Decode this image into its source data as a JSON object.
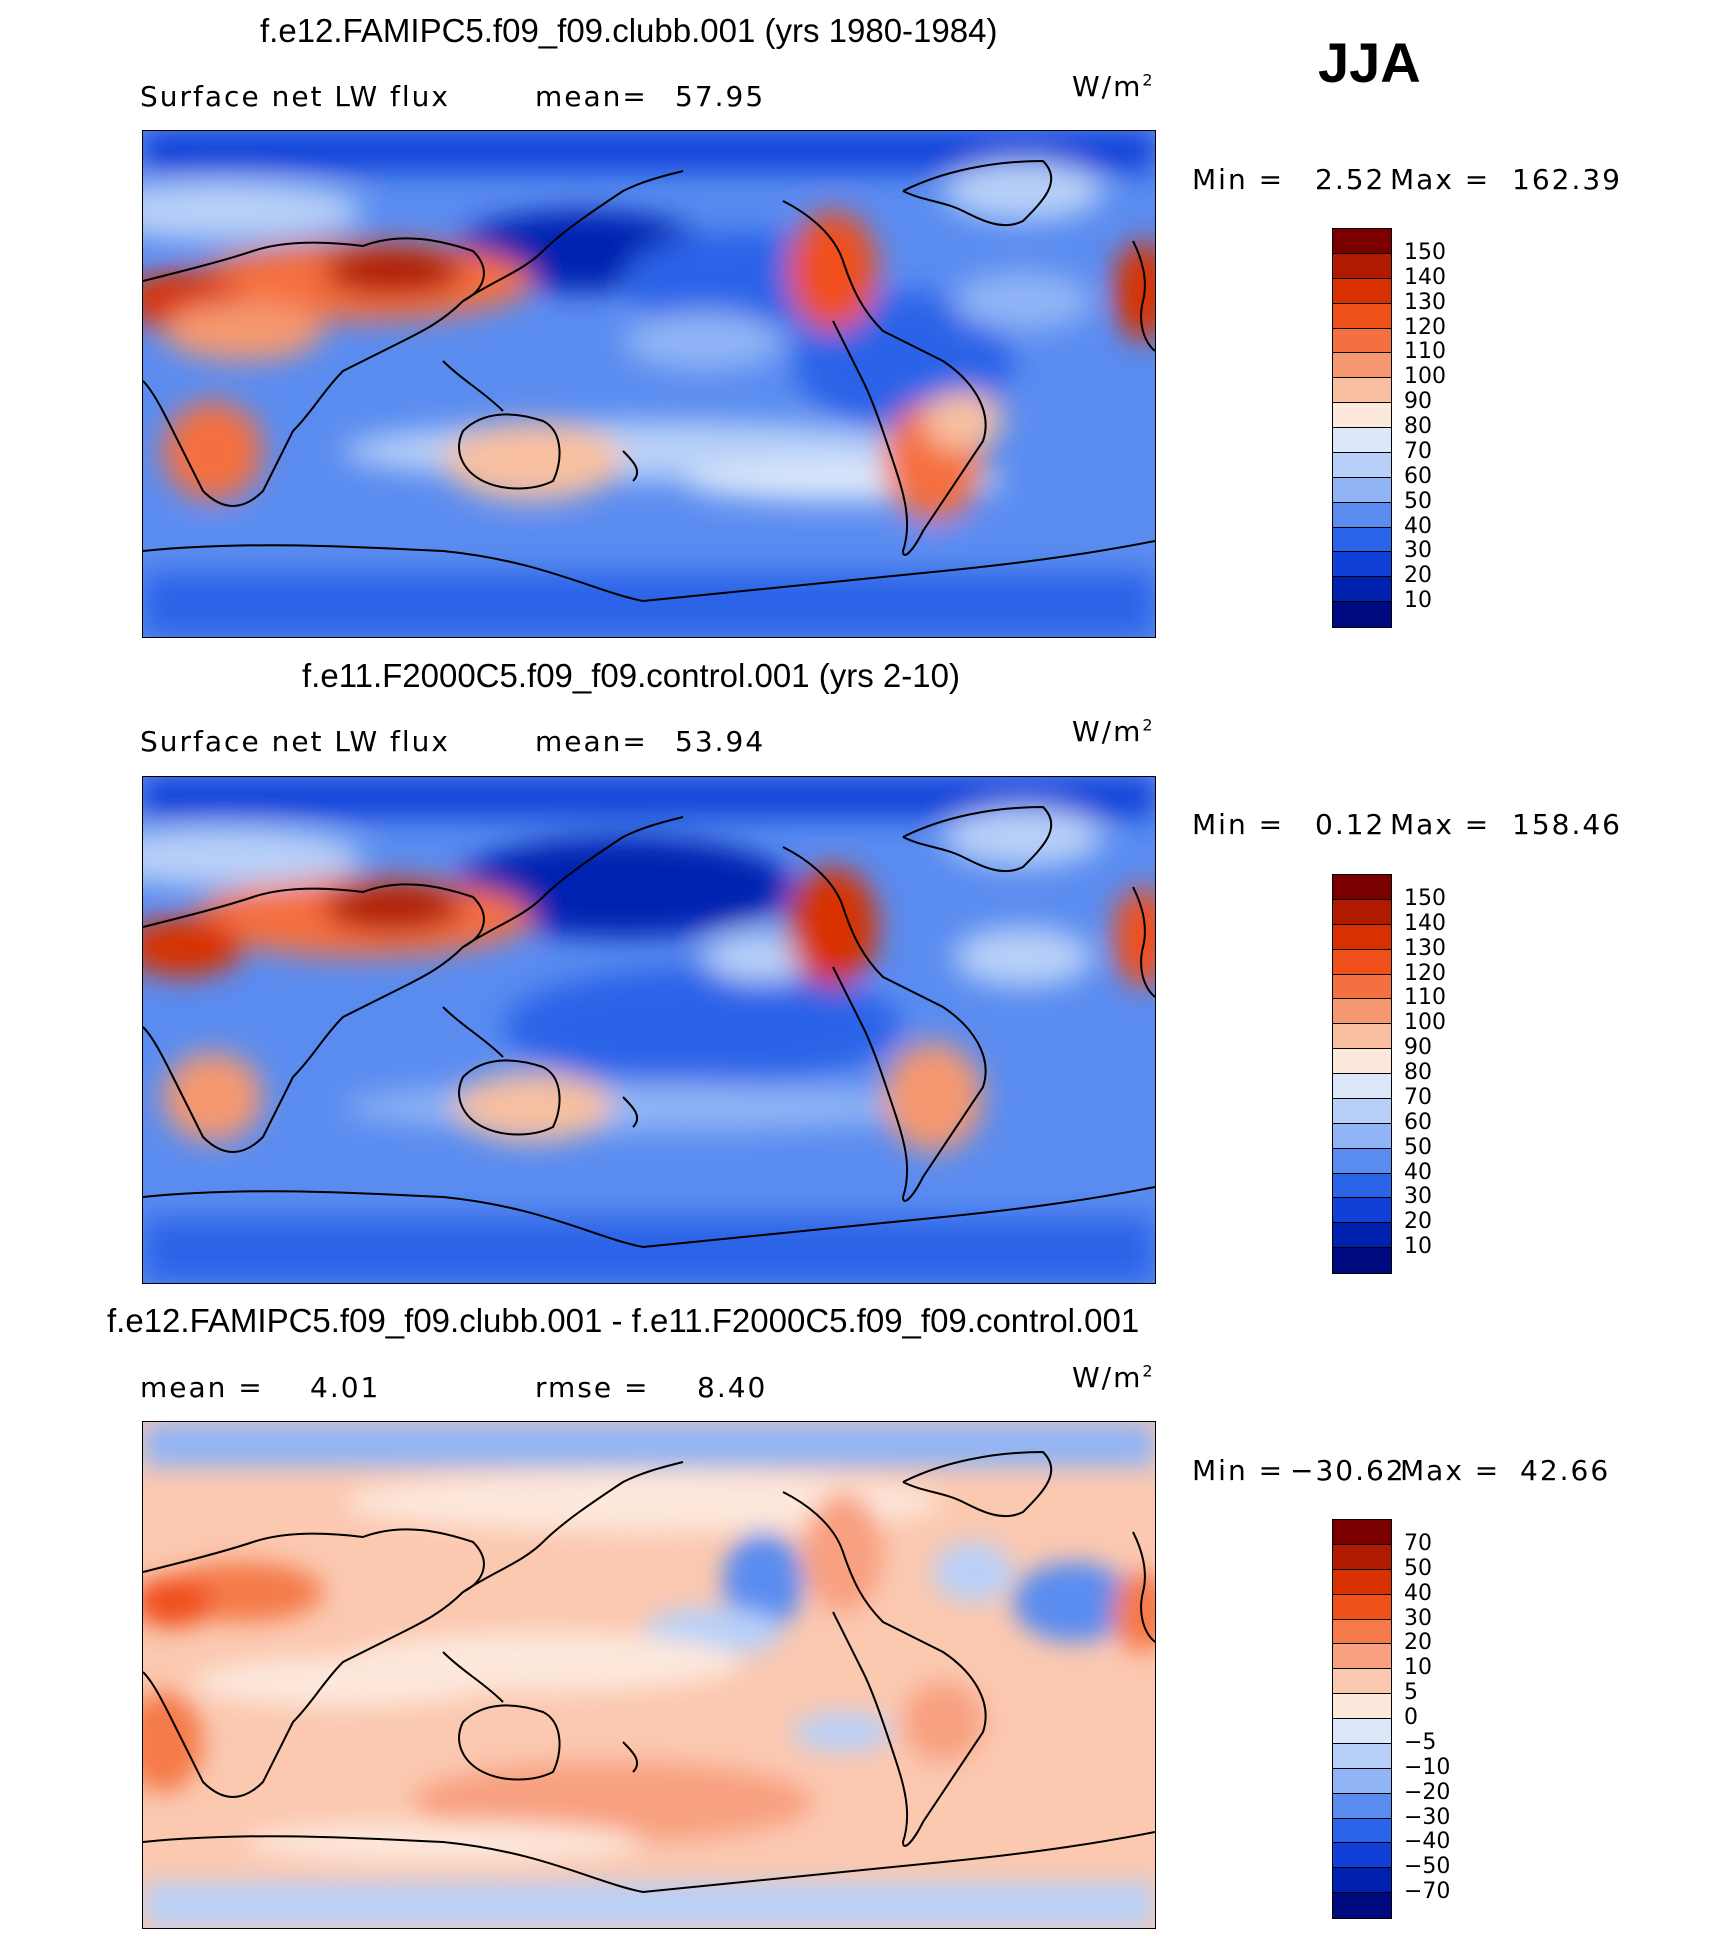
{
  "season": "JJA",
  "units_main": "W/m",
  "units_exp": "2",
  "panels": [
    {
      "title": "f.e12.FAMIPC5.f09_f09.clubb.001 (yrs 1980-1984)",
      "variable": "Surface net LW flux",
      "stat1_label": "mean=",
      "stat1_value": "57.95",
      "min_label": "Min =",
      "min_value": "2.52",
      "max_label": "Max =",
      "max_value": "162.39"
    },
    {
      "title": "f.e11.F2000C5.f09_f09.control.001 (yrs 2-10)",
      "variable": "Surface net LW flux",
      "stat1_label": "mean=",
      "stat1_value": "53.94",
      "min_label": "Min =",
      "min_value": "0.12",
      "max_label": "Max =",
      "max_value": "158.46"
    },
    {
      "title": "f.e12.FAMIPC5.f09_f09.clubb.001 - f.e11.F2000C5.f09_f09.control.001",
      "stat1_label": "mean =",
      "stat1_value": "4.01",
      "stat2_label": "rmse =",
      "stat2_value": "8.40",
      "min_label": "Min =",
      "min_value": "−30.62",
      "max_label": "Max =",
      "max_value": "42.66"
    }
  ],
  "colorbars": {
    "field": {
      "labels": [
        "150",
        "140",
        "130",
        "120",
        "110",
        "100",
        "90",
        "80",
        "70",
        "60",
        "50",
        "40",
        "30",
        "20",
        "10"
      ],
      "colors": [
        "#7a0000",
        "#b01a00",
        "#d83000",
        "#f0501a",
        "#f57040",
        "#f59870",
        "#f8c0a0",
        "#fde8dc",
        "#dce8fa",
        "#b8d0f8",
        "#90b4f5",
        "#5a8cf0",
        "#2a64e8",
        "#1040d8",
        "#0020b0",
        "#000a80"
      ]
    },
    "diff": {
      "labels": [
        "70",
        "50",
        "40",
        "30",
        "20",
        "10",
        "5",
        "0",
        "−5",
        "−10",
        "−20",
        "−30",
        "−40",
        "−50",
        "−70"
      ],
      "colors": [
        "#7a0000",
        "#b01a00",
        "#d83000",
        "#f0501a",
        "#f57a4a",
        "#f8a080",
        "#fbc8b0",
        "#fde8dc",
        "#dce8fa",
        "#b8d0f8",
        "#90b4f5",
        "#5a8cf0",
        "#2a64e8",
        "#1040d8",
        "#0020b0",
        "#000a80"
      ]
    }
  },
  "chart_data": [
    {
      "type": "heatmap",
      "title": "f.e12.FAMIPC5.f09_f09.clubb.001 (yrs 1980-1984)",
      "variable": "Surface net LW flux",
      "units": "W/m2",
      "mean": 57.95,
      "min": 2.52,
      "max": 162.39,
      "contour_levels": [
        10,
        20,
        30,
        40,
        50,
        60,
        70,
        80,
        90,
        100,
        110,
        120,
        130,
        140,
        150
      ]
    },
    {
      "type": "heatmap",
      "title": "f.e11.F2000C5.f09_f09.control.001 (yrs 2-10)",
      "variable": "Surface net LW flux",
      "units": "W/m2",
      "mean": 53.94,
      "min": 0.12,
      "max": 158.46,
      "contour_levels": [
        10,
        20,
        30,
        40,
        50,
        60,
        70,
        80,
        90,
        100,
        110,
        120,
        130,
        140,
        150
      ]
    },
    {
      "type": "heatmap",
      "title": "f.e12.FAMIPC5.f09_f09.clubb.001 - f.e11.F2000C5.f09_f09.control.001",
      "units": "W/m2",
      "mean": 4.01,
      "rmse": 8.4,
      "min": -30.62,
      "max": 42.66,
      "contour_levels": [
        -70,
        -50,
        -40,
        -30,
        -20,
        -10,
        -5,
        0,
        5,
        10,
        20,
        30,
        40,
        50,
        70
      ]
    }
  ]
}
